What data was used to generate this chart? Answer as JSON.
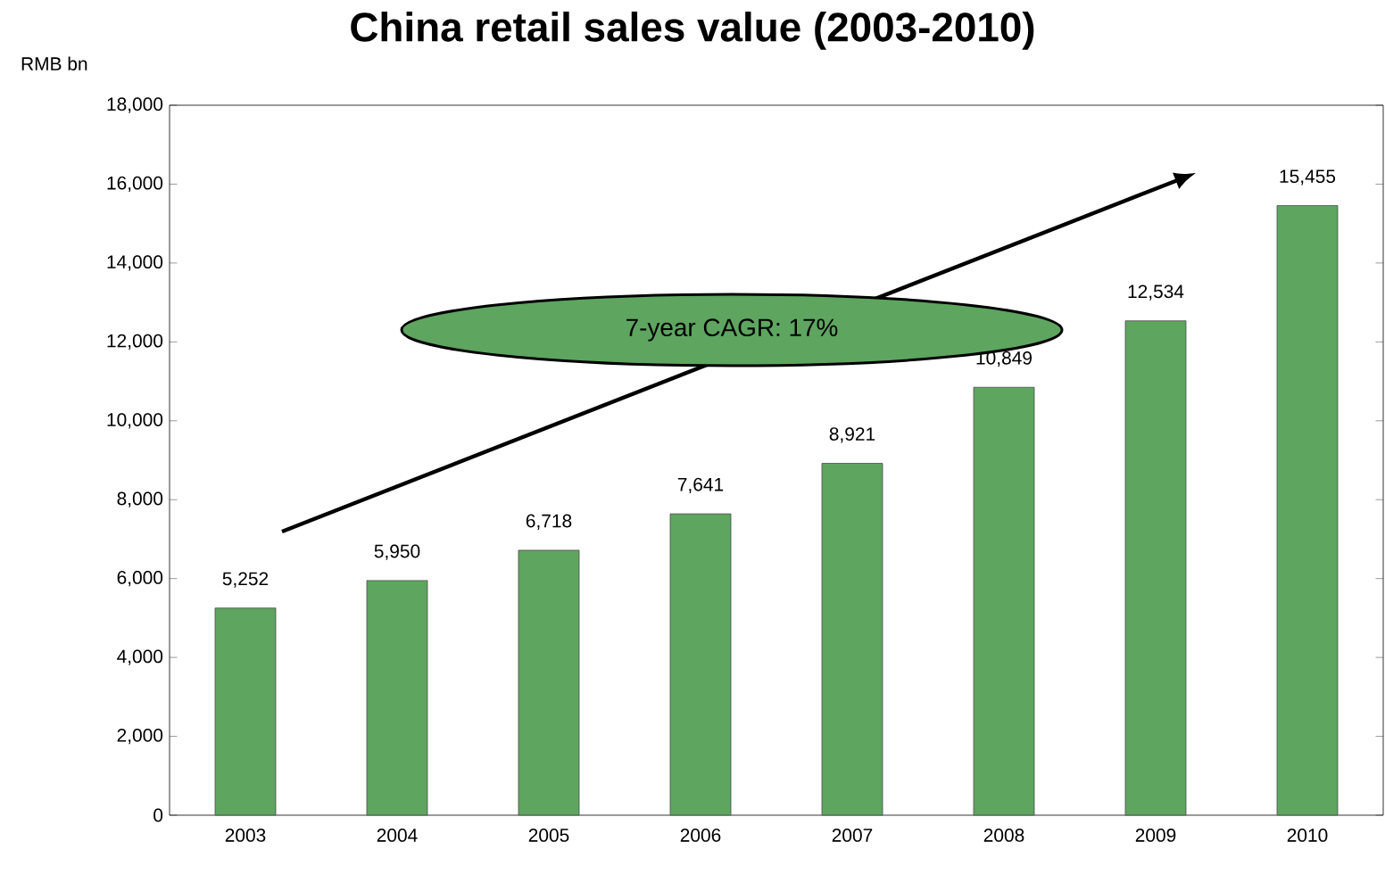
{
  "chart_data": {
    "type": "bar",
    "title": "China retail sales value (2003-2010)",
    "ylabel": "RMB bn",
    "categories": [
      "2003",
      "2004",
      "2005",
      "2006",
      "2007",
      "2008",
      "2009",
      "2010"
    ],
    "values": [
      5252,
      5950,
      6718,
      7641,
      8921,
      10849,
      12534,
      15455
    ],
    "value_labels": [
      "5,252",
      "5,950",
      "6,718",
      "7,641",
      "8,921",
      "10,849",
      "12,534",
      "15,455"
    ],
    "color": "#5ea560",
    "ylim": [
      0,
      18000
    ],
    "yticks": [
      0,
      {
        "value": 2000,
        "label": "2,000"
      },
      {
        "value": 4000,
        "label": "4,000"
      },
      {
        "value": 6000,
        "label": "6,000"
      },
      {
        "value": 8000,
        "label": "8,000"
      },
      {
        "value": 10000,
        "label": "10,000"
      },
      {
        "value": 12000,
        "label": "12,000"
      },
      {
        "value": 14000,
        "label": "14,000"
      },
      {
        "value": 16000,
        "label": "16,000"
      },
      {
        "value": 18000,
        "label": "18,000"
      }
    ],
    "grid": false,
    "annotations": [
      "7-year CAGR: 17%"
    ]
  }
}
